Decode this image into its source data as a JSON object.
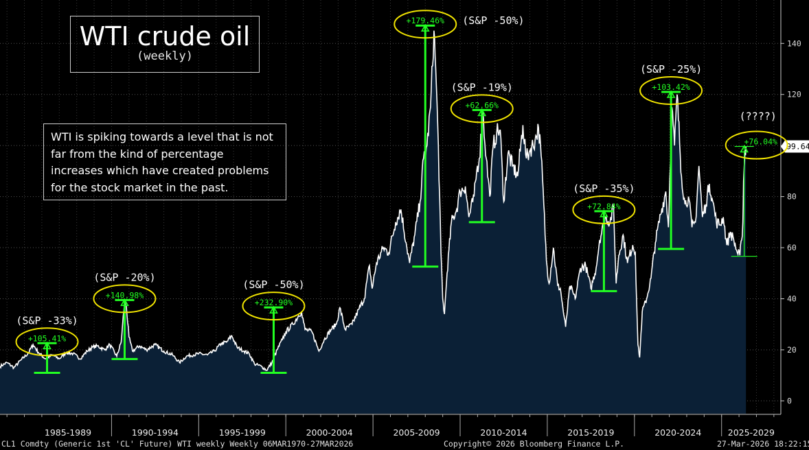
{
  "title": {
    "main": "WTI crude oil",
    "sub": "(weekly)"
  },
  "note": "WTI is spiking towards a level that is not far from the kind of percentage increases which have created problems for the stock market in the past.",
  "footer": {
    "left": "CL1 Comdty (Generic 1st 'CL' Future) WTI  weekly Weekly 06MAR1970-27MAR2026",
    "center": "Copyright© 2026 Bloomberg Finance L.P.",
    "right": "27-Mar-2026 18:22:15"
  },
  "colors": {
    "background": "#000000",
    "area_fill": "#0b2036",
    "line": "#ffffff",
    "annotation_green": "#22ff22",
    "circle_yellow": "#f2e500",
    "grid": "#555555"
  },
  "chart_data": {
    "type": "area",
    "title": "WTI crude oil",
    "subtitle": "(weekly)",
    "x_unit": "year",
    "xlim": [
      1983.6,
      2028.4
    ],
    "ylim": [
      -5,
      157
    ],
    "y_ticks": [
      0,
      20,
      40,
      60,
      80,
      100,
      120,
      140
    ],
    "x_period_labels": [
      "1985-1989",
      "1990-1994",
      "1995-1999",
      "2000-2004",
      "2005-2009",
      "2010-2014",
      "2015-2019",
      "2020-2024",
      "2025-2029"
    ],
    "x_period_bounds": [
      1985,
      1990,
      1995,
      2000,
      2005,
      2010,
      2015,
      2020,
      2025,
      2030
    ],
    "grid": "dotted horizontal",
    "last_value": 99.64,
    "series": [
      {
        "values_xy": [
          [
            1983.6,
            13.5
          ],
          [
            1984.0,
            15.0
          ],
          [
            1984.4,
            13.0
          ],
          [
            1984.8,
            16.0
          ],
          [
            1985.2,
            18.5
          ],
          [
            1985.5,
            22.0
          ],
          [
            1985.8,
            19.0
          ],
          [
            1986.2,
            16.5
          ],
          [
            1986.6,
            18.0
          ],
          [
            1987.0,
            16.5
          ],
          [
            1987.4,
            19.0
          ],
          [
            1987.8,
            18.5
          ],
          [
            1988.2,
            16.5
          ],
          [
            1988.6,
            19.5
          ],
          [
            1988.9,
            21.0
          ],
          [
            1989.2,
            21.5
          ],
          [
            1989.6,
            20.0
          ],
          [
            1989.9,
            22.0
          ],
          [
            1990.3,
            17.5
          ],
          [
            1990.55,
            23.0
          ],
          [
            1990.75,
            39.0
          ],
          [
            1990.85,
            37.0
          ],
          [
            1991.0,
            25.0
          ],
          [
            1991.2,
            19.5
          ],
          [
            1991.6,
            21.5
          ],
          [
            1992.0,
            20.0
          ],
          [
            1992.5,
            22.0
          ],
          [
            1993.0,
            19.5
          ],
          [
            1993.5,
            18.0
          ],
          [
            1993.9,
            15.0
          ],
          [
            1994.3,
            17.5
          ],
          [
            1994.7,
            18.0
          ],
          [
            1995.0,
            18.5
          ],
          [
            1995.5,
            18.0
          ],
          [
            1995.9,
            19.5
          ],
          [
            1996.3,
            22.5
          ],
          [
            1996.6,
            23.0
          ],
          [
            1996.9,
            25.5
          ],
          [
            1997.2,
            21.0
          ],
          [
            1997.6,
            19.5
          ],
          [
            1997.9,
            18.5
          ],
          [
            1998.2,
            14.5
          ],
          [
            1998.6,
            13.5
          ],
          [
            1998.9,
            12.0
          ],
          [
            1999.2,
            15.0
          ],
          [
            1999.5,
            20.0
          ],
          [
            1999.8,
            24.0
          ],
          [
            2000.0,
            27.0
          ],
          [
            2000.4,
            30.0
          ],
          [
            2000.7,
            33.0
          ],
          [
            2000.9,
            35.0
          ],
          [
            2001.1,
            28.0
          ],
          [
            2001.5,
            27.0
          ],
          [
            2001.9,
            19.5
          ],
          [
            2002.2,
            24.0
          ],
          [
            2002.6,
            28.0
          ],
          [
            2002.9,
            30.0
          ],
          [
            2003.1,
            36.5
          ],
          [
            2003.4,
            28.0
          ],
          [
            2003.8,
            30.0
          ],
          [
            2004.2,
            36.0
          ],
          [
            2004.5,
            40.0
          ],
          [
            2004.8,
            53.0
          ],
          [
            2004.95,
            44.0
          ],
          [
            2005.2,
            54.0
          ],
          [
            2005.6,
            60.0
          ],
          [
            2005.9,
            58.0
          ],
          [
            2006.3,
            70.0
          ],
          [
            2006.6,
            75.0
          ],
          [
            2006.9,
            62.0
          ],
          [
            2007.1,
            54.0
          ],
          [
            2007.4,
            65.0
          ],
          [
            2007.7,
            78.0
          ],
          [
            2007.9,
            95.0
          ],
          [
            2008.1,
            100.0
          ],
          [
            2008.3,
            115.0
          ],
          [
            2008.5,
            145.0
          ],
          [
            2008.6,
            130.0
          ],
          [
            2008.75,
            100.0
          ],
          [
            2008.9,
            58.0
          ],
          [
            2009.0,
            40.0
          ],
          [
            2009.1,
            34.0
          ],
          [
            2009.25,
            50.0
          ],
          [
            2009.5,
            70.0
          ],
          [
            2009.8,
            75.0
          ],
          [
            2010.0,
            82.0
          ],
          [
            2010.3,
            84.0
          ],
          [
            2010.5,
            72.0
          ],
          [
            2010.8,
            80.0
          ],
          [
            2010.95,
            90.0
          ],
          [
            2011.1,
            95.0
          ],
          [
            2011.3,
            113.0
          ],
          [
            2011.5,
            95.0
          ],
          [
            2011.7,
            80.0
          ],
          [
            2011.9,
            100.0
          ],
          [
            2012.1,
            105.0
          ],
          [
            2012.3,
            106.0
          ],
          [
            2012.5,
            78.0
          ],
          [
            2012.75,
            97.0
          ],
          [
            2013.0,
            92.0
          ],
          [
            2013.3,
            88.0
          ],
          [
            2013.6,
            108.0
          ],
          [
            2013.8,
            95.0
          ],
          [
            2014.0,
            98.0
          ],
          [
            2014.3,
            102.0
          ],
          [
            2014.5,
            107.0
          ],
          [
            2014.65,
            96.0
          ],
          [
            2014.8,
            77.0
          ],
          [
            2014.95,
            55.0
          ],
          [
            2015.1,
            46.0
          ],
          [
            2015.35,
            60.0
          ],
          [
            2015.6,
            45.0
          ],
          [
            2015.75,
            44.0
          ],
          [
            2015.9,
            36.0
          ],
          [
            2016.05,
            29.0
          ],
          [
            2016.3,
            45.0
          ],
          [
            2016.6,
            40.0
          ],
          [
            2016.9,
            52.0
          ],
          [
            2017.2,
            53.0
          ],
          [
            2017.5,
            44.0
          ],
          [
            2017.8,
            52.0
          ],
          [
            2018.0,
            63.0
          ],
          [
            2018.35,
            72.0
          ],
          [
            2018.6,
            70.0
          ],
          [
            2018.8,
            76.0
          ],
          [
            2018.95,
            46.0
          ],
          [
            2019.1,
            57.0
          ],
          [
            2019.35,
            65.0
          ],
          [
            2019.6,
            54.0
          ],
          [
            2019.9,
            61.0
          ],
          [
            2020.05,
            58.0
          ],
          [
            2020.2,
            22.0
          ],
          [
            2020.3,
            17.0
          ],
          [
            2020.45,
            35.0
          ],
          [
            2020.7,
            40.0
          ],
          [
            2020.95,
            48.0
          ],
          [
            2021.2,
            62.0
          ],
          [
            2021.5,
            73.0
          ],
          [
            2021.8,
            82.0
          ],
          [
            2021.95,
            68.0
          ],
          [
            2022.15,
            115.0
          ],
          [
            2022.3,
            100.0
          ],
          [
            2022.45,
            120.0
          ],
          [
            2022.7,
            88.0
          ],
          [
            2022.9,
            77.0
          ],
          [
            2023.1,
            80.0
          ],
          [
            2023.3,
            68.0
          ],
          [
            2023.5,
            70.0
          ],
          [
            2023.7,
            92.0
          ],
          [
            2023.9,
            72.0
          ],
          [
            2024.1,
            77.0
          ],
          [
            2024.3,
            85.0
          ],
          [
            2024.5,
            78.0
          ],
          [
            2024.7,
            70.0
          ],
          [
            2024.9,
            69.0
          ],
          [
            2025.1,
            72.0
          ],
          [
            2025.3,
            61.0
          ],
          [
            2025.5,
            66.0
          ],
          [
            2025.7,
            63.0
          ],
          [
            2025.9,
            58.0
          ],
          [
            2026.05,
            57.0
          ],
          [
            2026.15,
            63.0
          ],
          [
            2026.22,
            70.0
          ],
          [
            2026.26,
            86.0
          ],
          [
            2026.3,
            92.0
          ],
          [
            2026.35,
            98.0
          ],
          [
            2026.4,
            99.64
          ]
        ]
      }
    ],
    "annotations": [
      {
        "label": "+105.41%",
        "x": 1986.3,
        "low": 11.0,
        "high": 22.6,
        "sp": "(S&P  -33%)"
      },
      {
        "label": "+140.98%",
        "x": 1990.75,
        "low": 16.4,
        "high": 39.5,
        "sp": "(S&P  -20%)"
      },
      {
        "label": "+232.90%",
        "x": 1999.3,
        "low": 11.0,
        "high": 36.6,
        "sp": "(S&P  -50%)"
      },
      {
        "label": "+179.46%",
        "x": 2008.0,
        "low": 52.6,
        "high": 147.0,
        "sp": "(S&P  -50%)"
      },
      {
        "label": "+62.66%",
        "x": 2011.25,
        "low": 70.0,
        "high": 113.9,
        "sp": "(S&P  -19%)"
      },
      {
        "label": "+72.84%",
        "x": 2018.25,
        "low": 43.0,
        "high": 74.3,
        "sp": "(S&P  -35%)"
      },
      {
        "label": "+103.42%",
        "x": 2022.1,
        "low": 59.5,
        "high": 121.0,
        "sp": "(S&P  -25%)"
      },
      {
        "label": "+76.04%",
        "x": 2026.3,
        "low": 56.6,
        "high": 99.64,
        "sp": "(????)"
      }
    ]
  }
}
